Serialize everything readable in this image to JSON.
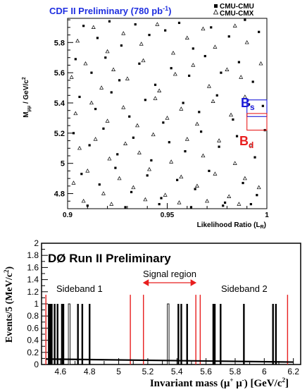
{
  "chart_data": [
    {
      "type": "scatter",
      "title": "CDF II Preliminary (780 pb",
      "title_sup": "-1",
      "title_close": ")",
      "title_color": "#1f2fe0",
      "xlabel": "Likelihood Ratio (L",
      "xlabel_sub": "R",
      "xlabel_close": ")",
      "ylabel": "M",
      "ylabel_sub": "μμ",
      "ylabel_rest": " / GeV/c",
      "ylabel_sup": "2",
      "xlim": [
        0.9,
        1.0
      ],
      "ylim": [
        4.7,
        5.96
      ],
      "x_ticks": [
        "0.9",
        "0.95",
        "1"
      ],
      "y_ticks": [
        "4.8",
        "5",
        "5.2",
        "5.4",
        "5.6",
        "5.8"
      ],
      "legend_position": "top-right",
      "series": [
        {
          "name": "CMU-CMU",
          "marker": "square",
          "points": [
            [
              0.908,
              5.91
            ],
            [
              0.915,
              5.83
            ],
            [
              0.921,
              5.94
            ],
            [
              0.927,
              5.78
            ],
            [
              0.934,
              5.92
            ],
            [
              0.941,
              5.85
            ],
            [
              0.949,
              5.88
            ],
            [
              0.956,
              5.93
            ],
            [
              0.963,
              5.76
            ],
            [
              0.972,
              5.9
            ],
            [
              0.981,
              5.84
            ],
            [
              0.989,
              5.95
            ],
            [
              0.996,
              5.87
            ],
            [
              0.904,
              5.69
            ],
            [
              0.912,
              5.6
            ],
            [
              0.919,
              5.7
            ],
            [
              0.926,
              5.55
            ],
            [
              0.936,
              5.66
            ],
            [
              0.944,
              5.52
            ],
            [
              0.952,
              5.63
            ],
            [
              0.961,
              5.58
            ],
            [
              0.969,
              5.71
            ],
            [
              0.977,
              5.6
            ],
            [
              0.986,
              5.67
            ],
            [
              0.993,
              5.54
            ],
            [
              0.906,
              5.44
            ],
            [
              0.914,
              5.36
            ],
            [
              0.922,
              5.47
            ],
            [
              0.931,
              5.31
            ],
            [
              0.939,
              5.42
            ],
            [
              0.948,
              5.27
            ],
            [
              0.958,
              5.4
            ],
            [
              0.966,
              5.34
            ],
            [
              0.975,
              5.45
            ],
            [
              0.983,
              5.29
            ],
            [
              0.991,
              5.39
            ],
            [
              0.998,
              5.38
            ],
            [
              0.903,
              5.2
            ],
            [
              0.911,
              5.12
            ],
            [
              0.918,
              5.23
            ],
            [
              0.925,
              5.06
            ],
            [
              0.933,
              5.17
            ],
            [
              0.942,
              5.02
            ],
            [
              0.951,
              5.14
            ],
            [
              0.959,
              5.08
            ],
            [
              0.967,
              5.21
            ],
            [
              0.976,
              5.11
            ],
            [
              0.985,
              5.18
            ],
            [
              0.994,
              5.04
            ],
            [
              0.999,
              5.22
            ],
            [
              0.907,
              4.93
            ],
            [
              0.916,
              4.86
            ],
            [
              0.924,
              4.97
            ],
            [
              0.932,
              4.81
            ],
            [
              0.94,
              4.92
            ],
            [
              0.947,
              4.77
            ],
            [
              0.955,
              4.89
            ],
            [
              0.964,
              4.83
            ],
            [
              0.971,
              4.95
            ],
            [
              0.979,
              4.74
            ],
            [
              0.988,
              4.87
            ],
            [
              0.995,
              4.79
            ],
            [
              0.91,
              4.72
            ],
            [
              0.929,
              4.71
            ],
            [
              0.946,
              4.73
            ],
            [
              0.962,
              4.71
            ],
            [
              0.978,
              4.72
            ],
            [
              0.992,
              4.73
            ]
          ]
        },
        {
          "name": "CMU-CMX",
          "marker": "triangle",
          "points": [
            [
              0.905,
              5.81
            ],
            [
              0.913,
              5.9
            ],
            [
              0.92,
              5.74
            ],
            [
              0.928,
              5.86
            ],
            [
              0.937,
              5.79
            ],
            [
              0.945,
              5.92
            ],
            [
              0.953,
              5.73
            ],
            [
              0.96,
              5.83
            ],
            [
              0.968,
              5.89
            ],
            [
              0.974,
              5.77
            ],
            [
              0.984,
              5.91
            ],
            [
              0.99,
              5.8
            ],
            [
              0.902,
              5.57
            ],
            [
              0.909,
              5.66
            ],
            [
              0.917,
              5.5
            ],
            [
              0.923,
              5.62
            ],
            [
              0.93,
              5.56
            ],
            [
              0.938,
              5.68
            ],
            [
              0.946,
              5.48
            ],
            [
              0.954,
              5.59
            ],
            [
              0.963,
              5.65
            ],
            [
              0.971,
              5.51
            ],
            [
              0.98,
              5.62
            ],
            [
              0.987,
              5.57
            ],
            [
              0.997,
              5.66
            ],
            [
              0.904,
              5.33
            ],
            [
              0.912,
              5.4
            ],
            [
              0.92,
              5.28
            ],
            [
              0.928,
              5.37
            ],
            [
              0.935,
              5.25
            ],
            [
              0.944,
              5.43
            ],
            [
              0.95,
              5.3
            ],
            [
              0.957,
              5.36
            ],
            [
              0.965,
              5.26
            ],
            [
              0.973,
              5.41
            ],
            [
              0.982,
              5.32
            ],
            [
              0.989,
              5.44
            ],
            [
              0.906,
              5.1
            ],
            [
              0.914,
              5.16
            ],
            [
              0.921,
              5.03
            ],
            [
              0.929,
              5.13
            ],
            [
              0.936,
              5.07
            ],
            [
              0.943,
              5.19
            ],
            [
              0.952,
              5.01
            ],
            [
              0.96,
              5.16
            ],
            [
              0.968,
              5.05
            ],
            [
              0.976,
              5.15
            ],
            [
              0.984,
              5.0
            ],
            [
              0.992,
              5.12
            ],
            [
              0.903,
              4.87
            ],
            [
              0.91,
              4.95
            ],
            [
              0.918,
              4.8
            ],
            [
              0.926,
              4.9
            ],
            [
              0.933,
              4.84
            ],
            [
              0.941,
              4.96
            ],
            [
              0.949,
              4.79
            ],
            [
              0.957,
              4.91
            ],
            [
              0.965,
              4.85
            ],
            [
              0.974,
              4.93
            ],
            [
              0.981,
              4.78
            ],
            [
              0.989,
              4.9
            ],
            [
              0.996,
              4.84
            ],
            [
              0.908,
              4.75
            ],
            [
              0.922,
              4.73
            ],
            [
              0.939,
              4.76
            ],
            [
              0.956,
              4.74
            ],
            [
              0.97,
              4.75
            ],
            [
              0.986,
              4.73
            ]
          ]
        }
      ],
      "annotations": [
        {
          "text": "B",
          "sub": "s",
          "color": "#1a1ad8",
          "window": [
            5.31,
            5.42
          ]
        },
        {
          "text": "B",
          "sub": "d",
          "color": "#e81e1e",
          "window": [
            5.22,
            5.33
          ]
        }
      ]
    },
    {
      "type": "bar",
      "title": "DØ Run II Preliminary",
      "xlabel": "Invariant mass (μ",
      "xlabel_sup1": "+",
      "xlabel_mid": " μ",
      "xlabel_sup2": "-",
      "xlabel_end": ") [GeV/c",
      "xlabel_sup3": "2",
      "xlabel_close": "]",
      "ylabel": "Events/5 (MeV/c",
      "ylabel_sup": "2",
      "ylabel_close": ")",
      "xlim": [
        4.47,
        6.25
      ],
      "ylim": [
        0,
        2
      ],
      "x_ticks": [
        "4.6",
        "4.8",
        "5",
        "5.2",
        "5.4",
        "5.6",
        "5.8",
        "6",
        "6.2"
      ],
      "y_ticks": [
        "0",
        "0.2",
        "0.4",
        "0.6",
        "0.8",
        "1",
        "1.2",
        "1.4",
        "1.6",
        "1.8",
        "2"
      ],
      "event_masses": [
        4.52,
        4.53,
        4.54,
        4.56,
        4.58,
        4.61,
        4.62,
        4.66,
        4.72,
        4.75,
        4.8,
        5.34,
        5.41,
        5.43,
        5.47,
        5.65,
        5.66,
        5.7,
        5.86,
        6.06,
        6.08
      ],
      "event_highlight": [
        false,
        false,
        false,
        false,
        false,
        false,
        false,
        true,
        false,
        false,
        false,
        true,
        false,
        false,
        false,
        false,
        false,
        false,
        false,
        false,
        false
      ],
      "event_value": 1,
      "background_curve": {
        "x": [
          4.5,
          6.2
        ],
        "y": [
          0.09,
          0.04
        ]
      },
      "region_boundaries": [
        4.5,
        5.08,
        5.17,
        5.53,
        5.56,
        6.16
      ],
      "region_labels": [
        "Sideband 1",
        "Signal region",
        "Sideband 2"
      ],
      "region_color": "#e81e1e"
    }
  ]
}
